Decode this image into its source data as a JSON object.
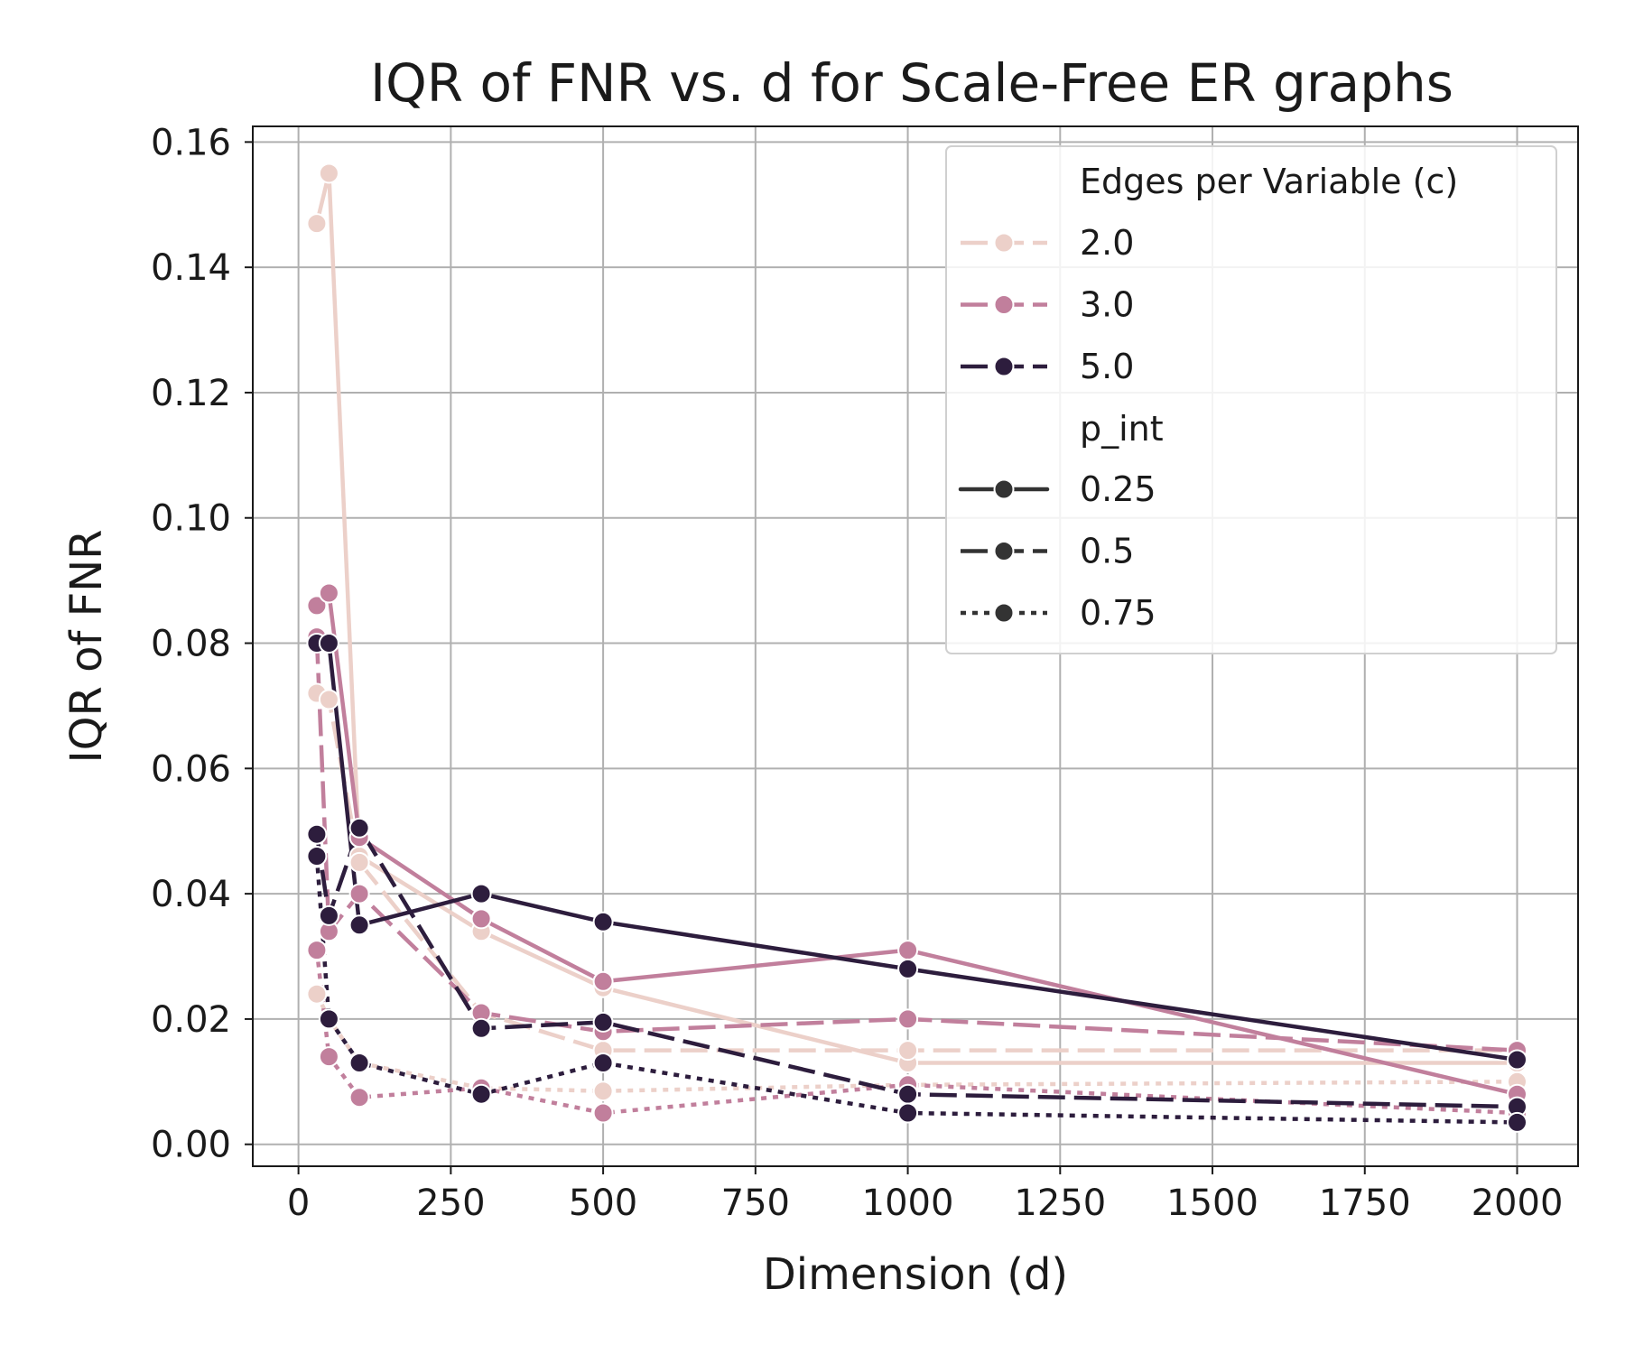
{
  "chart_data": {
    "type": "line",
    "title": "IQR of FNR vs. d for Scale-Free ER graphs",
    "xlabel": "Dimension (d)",
    "ylabel": "IQR of FNR",
    "xlim": [
      -75,
      2100
    ],
    "ylim": [
      -0.0035,
      0.1625
    ],
    "xticks": [
      0,
      250,
      500,
      750,
      1000,
      1250,
      1500,
      1750,
      2000
    ],
    "xtick_labels": [
      "0",
      "250",
      "500",
      "750",
      "1000",
      "1250",
      "1500",
      "1750",
      "2000"
    ],
    "yticks": [
      0.0,
      0.02,
      0.04,
      0.06,
      0.08,
      0.1,
      0.12,
      0.14,
      0.16
    ],
    "ytick_labels": [
      "0.00",
      "0.02",
      "0.04",
      "0.06",
      "0.08",
      "0.10",
      "0.12",
      "0.14",
      "0.16"
    ],
    "grid": true,
    "legend_position": "top-right",
    "legend": {
      "hue_title": "Edges per Variable (c)",
      "hue_entries": [
        {
          "label": "2.0",
          "color": "#ecd0c9"
        },
        {
          "label": "3.0",
          "color": "#c17f9c"
        },
        {
          "label": "5.0",
          "color": "#2d1d3d"
        }
      ],
      "style_title": "p_int",
      "style_entries": [
        {
          "label": "0.25",
          "dash": "solid"
        },
        {
          "label": "0.5",
          "dash": "dashed"
        },
        {
          "label": "0.75",
          "dash": "dotted"
        }
      ],
      "style_color": "#333333"
    },
    "series": [
      {
        "name": "c=2.0, p_int=0.25",
        "c": "2.0",
        "p_int": "0.25",
        "color": "#ecd0c9",
        "dash": "solid",
        "x": [
          30,
          50,
          100,
          300,
          500,
          1000,
          2000
        ],
        "y": [
          0.147,
          0.155,
          0.046,
          0.034,
          0.025,
          0.013,
          0.013
        ]
      },
      {
        "name": "c=2.0, p_int=0.5",
        "c": "2.0",
        "p_int": "0.5",
        "color": "#ecd0c9",
        "dash": "dashed",
        "x": [
          30,
          50,
          100,
          300,
          500,
          1000,
          2000
        ],
        "y": [
          0.072,
          0.071,
          0.045,
          0.021,
          0.015,
          0.015,
          0.015
        ]
      },
      {
        "name": "c=2.0, p_int=0.75",
        "c": "2.0",
        "p_int": "0.75",
        "color": "#ecd0c9",
        "dash": "dotted",
        "x": [
          30,
          50,
          100,
          300,
          500,
          1000,
          2000
        ],
        "y": [
          0.024,
          0.02,
          0.013,
          0.009,
          0.0085,
          0.0095,
          0.01
        ]
      },
      {
        "name": "c=3.0, p_int=0.25",
        "c": "3.0",
        "p_int": "0.25",
        "color": "#c17f9c",
        "dash": "solid",
        "x": [
          30,
          50,
          100,
          300,
          500,
          1000,
          2000
        ],
        "y": [
          0.086,
          0.088,
          0.049,
          0.036,
          0.026,
          0.031,
          0.008
        ]
      },
      {
        "name": "c=3.0, p_int=0.5",
        "c": "3.0",
        "p_int": "0.5",
        "color": "#c17f9c",
        "dash": "dashed",
        "x": [
          30,
          50,
          100,
          300,
          500,
          1000,
          2000
        ],
        "y": [
          0.081,
          0.034,
          0.04,
          0.021,
          0.018,
          0.02,
          0.015
        ]
      },
      {
        "name": "c=3.0, p_int=0.75",
        "c": "3.0",
        "p_int": "0.75",
        "color": "#c17f9c",
        "dash": "dotted",
        "x": [
          30,
          50,
          100,
          300,
          500,
          1000,
          2000
        ],
        "y": [
          0.031,
          0.014,
          0.0075,
          0.009,
          0.005,
          0.0095,
          0.005
        ]
      },
      {
        "name": "c=5.0, p_int=0.25",
        "c": "5.0",
        "p_int": "0.25",
        "color": "#2d1d3d",
        "dash": "solid",
        "x": [
          30,
          50,
          100,
          300,
          500,
          1000,
          2000
        ],
        "y": [
          0.08,
          0.08,
          0.035,
          0.04,
          0.0355,
          0.028,
          0.0135
        ]
      },
      {
        "name": "c=5.0, p_int=0.5",
        "c": "5.0",
        "p_int": "0.5",
        "color": "#2d1d3d",
        "dash": "dashed",
        "x": [
          30,
          50,
          100,
          300,
          500,
          1000,
          2000
        ],
        "y": [
          0.0495,
          0.0365,
          0.0505,
          0.0185,
          0.0195,
          0.008,
          0.006
        ]
      },
      {
        "name": "c=5.0, p_int=0.75",
        "c": "5.0",
        "p_int": "0.75",
        "color": "#2d1d3d",
        "dash": "dotted",
        "x": [
          30,
          50,
          100,
          300,
          500,
          1000,
          2000
        ],
        "y": [
          0.046,
          0.02,
          0.013,
          0.008,
          0.013,
          0.005,
          0.0035
        ]
      }
    ]
  }
}
